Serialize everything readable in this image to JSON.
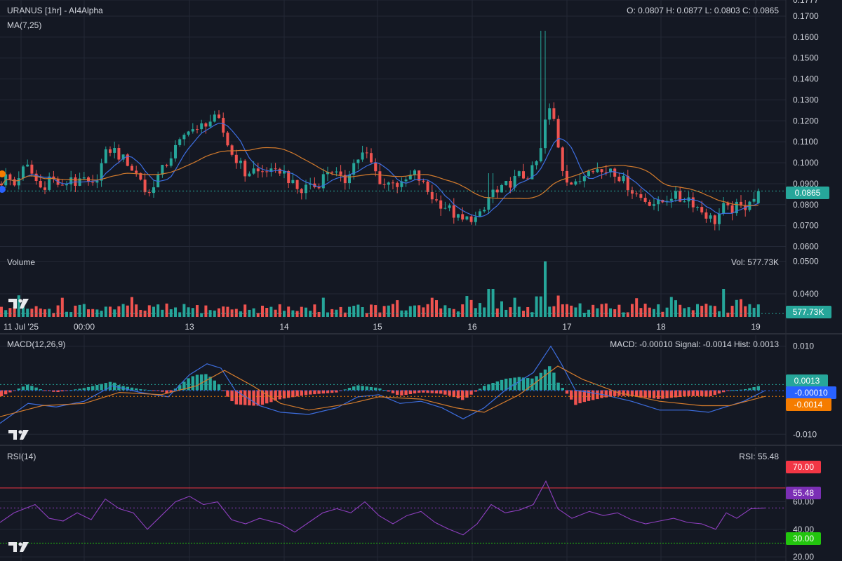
{
  "chart_data": {
    "type": "candlestick",
    "symbol_label": "URANUS [1hr] - AI4Alpha",
    "ohlc": {
      "label": "O: 0.0807 H: 0.0877 L: 0.0803 C: 0.0865",
      "open": 0.0807,
      "high": 0.0877,
      "low": 0.0803,
      "close": 0.0865
    },
    "ma_label": "MA(7,25)",
    "price_axis": {
      "ylim": [
        0.0565,
        0.1777
      ],
      "ticks": [
        "0.1777",
        "0.1700",
        "0.1600",
        "0.1500",
        "0.1400",
        "0.1300",
        "0.1200",
        "0.1100",
        "0.1000",
        "0.0900",
        "0.0800",
        "0.0700",
        "0.0600"
      ]
    },
    "last_price": "0.0865",
    "price_series": [
      {
        "x": 0,
        "y": 0.09
      },
      {
        "x": 10,
        "y": 0.094
      },
      {
        "x": 20,
        "y": 0.089
      },
      {
        "x": 30,
        "y": 0.096
      },
      {
        "x": 40,
        "y": 0.098
      },
      {
        "x": 50,
        "y": 0.092
      },
      {
        "x": 60,
        "y": 0.087
      },
      {
        "x": 70,
        "y": 0.093
      },
      {
        "x": 80,
        "y": 0.091
      },
      {
        "x": 90,
        "y": 0.087
      },
      {
        "x": 100,
        "y": 0.094
      },
      {
        "x": 110,
        "y": 0.089
      },
      {
        "x": 120,
        "y": 0.092
      },
      {
        "x": 130,
        "y": 0.087
      },
      {
        "x": 140,
        "y": 0.095
      },
      {
        "x": 150,
        "y": 0.104
      },
      {
        "x": 160,
        "y": 0.107
      },
      {
        "x": 170,
        "y": 0.103
      },
      {
        "x": 180,
        "y": 0.101
      },
      {
        "x": 190,
        "y": 0.096
      },
      {
        "x": 200,
        "y": 0.093
      },
      {
        "x": 210,
        "y": 0.083
      },
      {
        "x": 220,
        "y": 0.091
      },
      {
        "x": 230,
        "y": 0.096
      },
      {
        "x": 240,
        "y": 0.101
      },
      {
        "x": 250,
        "y": 0.107
      },
      {
        "x": 260,
        "y": 0.111
      },
      {
        "x": 270,
        "y": 0.118
      },
      {
        "x": 280,
        "y": 0.114
      },
      {
        "x": 290,
        "y": 0.119
      },
      {
        "x": 300,
        "y": 0.12
      },
      {
        "x": 310,
        "y": 0.121
      },
      {
        "x": 320,
        "y": 0.113
      },
      {
        "x": 330,
        "y": 0.104
      },
      {
        "x": 340,
        "y": 0.101
      },
      {
        "x": 350,
        "y": 0.094
      },
      {
        "x": 360,
        "y": 0.097
      },
      {
        "x": 370,
        "y": 0.095
      },
      {
        "x": 380,
        "y": 0.097
      },
      {
        "x": 390,
        "y": 0.094
      },
      {
        "x": 400,
        "y": 0.097
      },
      {
        "x": 410,
        "y": 0.093
      },
      {
        "x": 420,
        "y": 0.088
      },
      {
        "x": 430,
        "y": 0.086
      },
      {
        "x": 440,
        "y": 0.091
      },
      {
        "x": 450,
        "y": 0.088
      },
      {
        "x": 460,
        "y": 0.093
      },
      {
        "x": 470,
        "y": 0.098
      },
      {
        "x": 480,
        "y": 0.094
      },
      {
        "x": 490,
        "y": 0.09
      },
      {
        "x": 500,
        "y": 0.098
      },
      {
        "x": 510,
        "y": 0.102
      },
      {
        "x": 520,
        "y": 0.105
      },
      {
        "x": 530,
        "y": 0.099
      },
      {
        "x": 540,
        "y": 0.092
      },
      {
        "x": 550,
        "y": 0.089
      },
      {
        "x": 560,
        "y": 0.092
      },
      {
        "x": 570,
        "y": 0.088
      },
      {
        "x": 580,
        "y": 0.092
      },
      {
        "x": 590,
        "y": 0.095
      },
      {
        "x": 600,
        "y": 0.091
      },
      {
        "x": 610,
        "y": 0.086
      },
      {
        "x": 620,
        "y": 0.082
      },
      {
        "x": 630,
        "y": 0.08
      },
      {
        "x": 640,
        "y": 0.078
      },
      {
        "x": 650,
        "y": 0.074
      },
      {
        "x": 660,
        "y": 0.072
      },
      {
        "x": 670,
        "y": 0.074
      },
      {
        "x": 680,
        "y": 0.073
      },
      {
        "x": 690,
        "y": 0.077
      },
      {
        "x": 700,
        "y": 0.087
      },
      {
        "x": 710,
        "y": 0.085
      },
      {
        "x": 720,
        "y": 0.089
      },
      {
        "x": 730,
        "y": 0.091
      },
      {
        "x": 740,
        "y": 0.094
      },
      {
        "x": 750,
        "y": 0.093
      },
      {
        "x": 760,
        "y": 0.097
      },
      {
        "x": 770,
        "y": 0.104
      },
      {
        "x": 780,
        "y": 0.127
      },
      {
        "x": 790,
        "y": 0.12
      },
      {
        "x": 800,
        "y": 0.099
      },
      {
        "x": 810,
        "y": 0.091
      },
      {
        "x": 820,
        "y": 0.089
      },
      {
        "x": 830,
        "y": 0.093
      },
      {
        "x": 840,
        "y": 0.099
      },
      {
        "x": 850,
        "y": 0.097
      },
      {
        "x": 860,
        "y": 0.095
      },
      {
        "x": 870,
        "y": 0.098
      },
      {
        "x": 880,
        "y": 0.094
      },
      {
        "x": 890,
        "y": 0.091
      },
      {
        "x": 900,
        "y": 0.087
      },
      {
        "x": 910,
        "y": 0.084
      },
      {
        "x": 920,
        "y": 0.082
      },
      {
        "x": 930,
        "y": 0.081
      },
      {
        "x": 940,
        "y": 0.08
      },
      {
        "x": 950,
        "y": 0.083
      },
      {
        "x": 960,
        "y": 0.085
      },
      {
        "x": 970,
        "y": 0.082
      },
      {
        "x": 980,
        "y": 0.084
      },
      {
        "x": 990,
        "y": 0.08
      },
      {
        "x": 1000,
        "y": 0.077
      },
      {
        "x": 1010,
        "y": 0.074
      },
      {
        "x": 1020,
        "y": 0.072
      },
      {
        "x": 1030,
        "y": 0.079
      },
      {
        "x": 1040,
        "y": 0.077
      },
      {
        "x": 1050,
        "y": 0.079
      },
      {
        "x": 1060,
        "y": 0.078
      },
      {
        "x": 1070,
        "y": 0.084
      },
      {
        "x": 1080,
        "y": 0.082
      },
      {
        "x": 1090,
        "y": 0.0865
      }
    ],
    "volume": {
      "title": "Volume",
      "label": "Vol: 577.73K",
      "badge": "577.73K",
      "ylim": [
        0.032,
        0.0523
      ],
      "ticks": [
        "0.0500",
        "0.0400"
      ]
    },
    "time_axis": {
      "labels": [
        "11 Jul '25",
        "00:00",
        "13",
        "14",
        "15",
        "16",
        "17",
        "18",
        "19"
      ],
      "x_values": [
        30,
        120,
        270,
        405,
        538,
        673,
        808,
        942,
        1077
      ]
    },
    "macd": {
      "title": "MACD(12,26,9)",
      "label": "MACD: -0.00010 Signal: -0.0014 Hist: 0.0013",
      "ylim": [
        -0.0125,
        0.0125
      ],
      "ticks": [
        "0.010",
        "-0.010"
      ],
      "hist_badge": "0.0013",
      "macd_badge": "-0.00010",
      "signal_badge": "-0.0014",
      "macd_line": [
        {
          "x": 0,
          "y": -0.0075
        },
        {
          "x": 40,
          "y": -0.003
        },
        {
          "x": 80,
          "y": -0.0038
        },
        {
          "x": 120,
          "y": -0.0025
        },
        {
          "x": 160,
          "y": 0.001
        },
        {
          "x": 200,
          "y": -0.0005
        },
        {
          "x": 240,
          "y": -0.0015
        },
        {
          "x": 270,
          "y": 0.0035
        },
        {
          "x": 295,
          "y": 0.006
        },
        {
          "x": 315,
          "y": 0.005
        },
        {
          "x": 335,
          "y": 0.0
        },
        {
          "x": 370,
          "y": -0.0035
        },
        {
          "x": 400,
          "y": -0.005
        },
        {
          "x": 440,
          "y": -0.0055
        },
        {
          "x": 480,
          "y": -0.004
        },
        {
          "x": 510,
          "y": -0.0015
        },
        {
          "x": 540,
          "y": -0.001
        },
        {
          "x": 570,
          "y": -0.003
        },
        {
          "x": 600,
          "y": -0.0025
        },
        {
          "x": 630,
          "y": -0.004
        },
        {
          "x": 660,
          "y": -0.0065
        },
        {
          "x": 690,
          "y": -0.004
        },
        {
          "x": 720,
          "y": 0.0
        },
        {
          "x": 760,
          "y": 0.004
        },
        {
          "x": 785,
          "y": 0.01
        },
        {
          "x": 800,
          "y": 0.006
        },
        {
          "x": 820,
          "y": 0.0
        },
        {
          "x": 860,
          "y": -0.001
        },
        {
          "x": 900,
          "y": -0.0025
        },
        {
          "x": 940,
          "y": -0.0045
        },
        {
          "x": 980,
          "y": -0.0045
        },
        {
          "x": 1010,
          "y": -0.005
        },
        {
          "x": 1030,
          "y": -0.004
        },
        {
          "x": 1060,
          "y": -0.0025
        },
        {
          "x": 1090,
          "y": -0.0001
        }
      ],
      "signal_line": [
        {
          "x": 0,
          "y": -0.006
        },
        {
          "x": 60,
          "y": -0.0035
        },
        {
          "x": 120,
          "y": -0.003
        },
        {
          "x": 170,
          "y": -0.0005
        },
        {
          "x": 230,
          "y": -0.001
        },
        {
          "x": 280,
          "y": 0.001
        },
        {
          "x": 320,
          "y": 0.0045
        },
        {
          "x": 360,
          "y": 0.001
        },
        {
          "x": 400,
          "y": -0.003
        },
        {
          "x": 440,
          "y": -0.0045
        },
        {
          "x": 500,
          "y": -0.003
        },
        {
          "x": 540,
          "y": -0.0015
        },
        {
          "x": 600,
          "y": -0.002
        },
        {
          "x": 650,
          "y": -0.004
        },
        {
          "x": 690,
          "y": -0.005
        },
        {
          "x": 740,
          "y": -0.001
        },
        {
          "x": 795,
          "y": 0.0055
        },
        {
          "x": 830,
          "y": 0.0025
        },
        {
          "x": 880,
          "y": -0.0005
        },
        {
          "x": 940,
          "y": -0.0025
        },
        {
          "x": 1000,
          "y": -0.0035
        },
        {
          "x": 1040,
          "y": -0.0035
        },
        {
          "x": 1090,
          "y": -0.0014
        }
      ]
    },
    "rsi": {
      "title": "RSI(14)",
      "label": "RSI: 55.48",
      "ylim": [
        17,
        100
      ],
      "ticks": [
        "60.00",
        "40.00",
        "20.00"
      ],
      "upper_badge": "70.00",
      "lower_badge": "30.00",
      "value_badge": "55.48",
      "upper": 70,
      "lower": 30,
      "series": [
        {
          "x": 0,
          "y": 45
        },
        {
          "x": 20,
          "y": 52
        },
        {
          "x": 50,
          "y": 58
        },
        {
          "x": 70,
          "y": 48
        },
        {
          "x": 90,
          "y": 46
        },
        {
          "x": 110,
          "y": 52
        },
        {
          "x": 130,
          "y": 47
        },
        {
          "x": 150,
          "y": 62
        },
        {
          "x": 170,
          "y": 55
        },
        {
          "x": 190,
          "y": 52
        },
        {
          "x": 210,
          "y": 40
        },
        {
          "x": 230,
          "y": 50
        },
        {
          "x": 250,
          "y": 60
        },
        {
          "x": 270,
          "y": 64
        },
        {
          "x": 290,
          "y": 58
        },
        {
          "x": 310,
          "y": 60
        },
        {
          "x": 330,
          "y": 47
        },
        {
          "x": 350,
          "y": 44
        },
        {
          "x": 370,
          "y": 48
        },
        {
          "x": 400,
          "y": 44
        },
        {
          "x": 420,
          "y": 38
        },
        {
          "x": 440,
          "y": 45
        },
        {
          "x": 460,
          "y": 52
        },
        {
          "x": 480,
          "y": 55
        },
        {
          "x": 500,
          "y": 52
        },
        {
          "x": 520,
          "y": 60
        },
        {
          "x": 540,
          "y": 50
        },
        {
          "x": 560,
          "y": 44
        },
        {
          "x": 580,
          "y": 50
        },
        {
          "x": 600,
          "y": 53
        },
        {
          "x": 620,
          "y": 45
        },
        {
          "x": 640,
          "y": 40
        },
        {
          "x": 660,
          "y": 36
        },
        {
          "x": 680,
          "y": 44
        },
        {
          "x": 700,
          "y": 58
        },
        {
          "x": 720,
          "y": 52
        },
        {
          "x": 740,
          "y": 54
        },
        {
          "x": 760,
          "y": 58
        },
        {
          "x": 778,
          "y": 75
        },
        {
          "x": 795,
          "y": 55
        },
        {
          "x": 815,
          "y": 48
        },
        {
          "x": 840,
          "y": 53
        },
        {
          "x": 860,
          "y": 50
        },
        {
          "x": 880,
          "y": 52
        },
        {
          "x": 900,
          "y": 47
        },
        {
          "x": 920,
          "y": 44
        },
        {
          "x": 940,
          "y": 46
        },
        {
          "x": 960,
          "y": 48
        },
        {
          "x": 980,
          "y": 45
        },
        {
          "x": 1000,
          "y": 44
        },
        {
          "x": 1020,
          "y": 40
        },
        {
          "x": 1035,
          "y": 52
        },
        {
          "x": 1050,
          "y": 48
        },
        {
          "x": 1070,
          "y": 55
        },
        {
          "x": 1090,
          "y": 55.48
        }
      ]
    },
    "colors": {
      "background": "#141823",
      "grid": "#232836",
      "up": "#26a69a",
      "down": "#ef5350",
      "ma7": "#3d6ee0",
      "ma25": "#d27a2c",
      "rsi": "#8e3fbf",
      "badge_teal": "#26a69a",
      "badge_blue": "#2962ff",
      "badge_orange": "#f57c00",
      "badge_red": "#f23645",
      "badge_green": "#22c50e",
      "badge_purple": "#7b2fb5"
    }
  }
}
